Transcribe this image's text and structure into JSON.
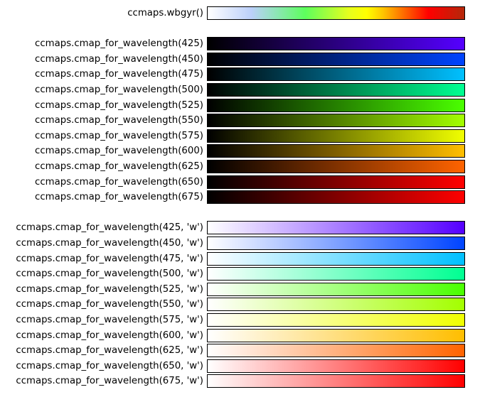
{
  "chart_data": {
    "type": "colormap-swatches",
    "colormaps": [
      {
        "label": "ccmaps.wbgyr()",
        "stops": [
          {
            "pos": 0.0,
            "color": "#ffffff"
          },
          {
            "pos": 0.17,
            "color": "#bcd0fa"
          },
          {
            "pos": 0.27,
            "color": "#8ce6b4"
          },
          {
            "pos": 0.38,
            "color": "#5dff5d"
          },
          {
            "pos": 0.55,
            "color": "#e6ff1e"
          },
          {
            "pos": 0.62,
            "color": "#ffff00"
          },
          {
            "pos": 0.68,
            "color": "#ffc800"
          },
          {
            "pos": 0.77,
            "color": "#ff6400"
          },
          {
            "pos": 0.86,
            "color": "#ff0000"
          },
          {
            "pos": 1.0,
            "color": "#b4280a"
          }
        ]
      },
      {
        "gap": true
      },
      {
        "label": "ccmaps.cmap_for_wavelength(425)",
        "stops": [
          {
            "pos": 0,
            "color": "#000000"
          },
          {
            "pos": 1,
            "color": "#5500ff"
          }
        ]
      },
      {
        "label": "ccmaps.cmap_for_wavelength(450)",
        "stops": [
          {
            "pos": 0,
            "color": "#000000"
          },
          {
            "pos": 1,
            "color": "#0044ff"
          }
        ]
      },
      {
        "label": "ccmaps.cmap_for_wavelength(475)",
        "stops": [
          {
            "pos": 0,
            "color": "#000000"
          },
          {
            "pos": 1,
            "color": "#00c0ff"
          }
        ]
      },
      {
        "label": "ccmaps.cmap_for_wavelength(500)",
        "stops": [
          {
            "pos": 0,
            "color": "#000000"
          },
          {
            "pos": 1,
            "color": "#00ff92"
          }
        ]
      },
      {
        "label": "ccmaps.cmap_for_wavelength(525)",
        "stops": [
          {
            "pos": 0,
            "color": "#000000"
          },
          {
            "pos": 1,
            "color": "#4aff00"
          }
        ]
      },
      {
        "label": "ccmaps.cmap_for_wavelength(550)",
        "stops": [
          {
            "pos": 0,
            "color": "#000000"
          },
          {
            "pos": 1,
            "color": "#a3ff00"
          }
        ]
      },
      {
        "label": "ccmaps.cmap_for_wavelength(575)",
        "stops": [
          {
            "pos": 0,
            "color": "#000000"
          },
          {
            "pos": 1,
            "color": "#f0ff00"
          }
        ]
      },
      {
        "label": "ccmaps.cmap_for_wavelength(600)",
        "stops": [
          {
            "pos": 0,
            "color": "#000000"
          },
          {
            "pos": 1,
            "color": "#ffbe00"
          }
        ]
      },
      {
        "label": "ccmaps.cmap_for_wavelength(625)",
        "stops": [
          {
            "pos": 0,
            "color": "#000000"
          },
          {
            "pos": 1,
            "color": "#ff6300"
          }
        ]
      },
      {
        "label": "ccmaps.cmap_for_wavelength(650)",
        "stops": [
          {
            "pos": 0,
            "color": "#000000"
          },
          {
            "pos": 1,
            "color": "#ff0000"
          }
        ]
      },
      {
        "label": "ccmaps.cmap_for_wavelength(675)",
        "stops": [
          {
            "pos": 0,
            "color": "#000000"
          },
          {
            "pos": 1,
            "color": "#ff0000"
          }
        ]
      },
      {
        "gap": true
      },
      {
        "label": "ccmaps.cmap_for_wavelength(425, 'w')",
        "stops": [
          {
            "pos": 0,
            "color": "#ffffff"
          },
          {
            "pos": 1,
            "color": "#5500ff"
          }
        ]
      },
      {
        "label": "ccmaps.cmap_for_wavelength(450, 'w')",
        "stops": [
          {
            "pos": 0,
            "color": "#ffffff"
          },
          {
            "pos": 1,
            "color": "#0044ff"
          }
        ]
      },
      {
        "label": "ccmaps.cmap_for_wavelength(475, 'w')",
        "stops": [
          {
            "pos": 0,
            "color": "#ffffff"
          },
          {
            "pos": 1,
            "color": "#00c0ff"
          }
        ]
      },
      {
        "label": "ccmaps.cmap_for_wavelength(500, 'w')",
        "stops": [
          {
            "pos": 0,
            "color": "#ffffff"
          },
          {
            "pos": 1,
            "color": "#00ff92"
          }
        ]
      },
      {
        "label": "ccmaps.cmap_for_wavelength(525, 'w')",
        "stops": [
          {
            "pos": 0,
            "color": "#ffffff"
          },
          {
            "pos": 1,
            "color": "#4aff00"
          }
        ]
      },
      {
        "label": "ccmaps.cmap_for_wavelength(550, 'w')",
        "stops": [
          {
            "pos": 0,
            "color": "#ffffff"
          },
          {
            "pos": 1,
            "color": "#a3ff00"
          }
        ]
      },
      {
        "label": "ccmaps.cmap_for_wavelength(575, 'w')",
        "stops": [
          {
            "pos": 0,
            "color": "#ffffff"
          },
          {
            "pos": 1,
            "color": "#f0ff00"
          }
        ]
      },
      {
        "label": "ccmaps.cmap_for_wavelength(600, 'w')",
        "stops": [
          {
            "pos": 0,
            "color": "#ffffff"
          },
          {
            "pos": 1,
            "color": "#ffbe00"
          }
        ]
      },
      {
        "label": "ccmaps.cmap_for_wavelength(625, 'w')",
        "stops": [
          {
            "pos": 0,
            "color": "#ffffff"
          },
          {
            "pos": 1,
            "color": "#ff6300"
          }
        ]
      },
      {
        "label": "ccmaps.cmap_for_wavelength(650, 'w')",
        "stops": [
          {
            "pos": 0,
            "color": "#ffffff"
          },
          {
            "pos": 1,
            "color": "#ff0000"
          }
        ]
      },
      {
        "label": "ccmaps.cmap_for_wavelength(675, 'w')",
        "stops": [
          {
            "pos": 0,
            "color": "#ffffff"
          },
          {
            "pos": 1,
            "color": "#ff0000"
          }
        ]
      }
    ]
  }
}
